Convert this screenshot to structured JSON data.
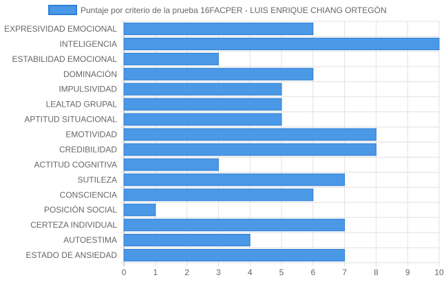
{
  "chart_data": {
    "type": "bar",
    "orientation": "horizontal",
    "legend": {
      "label": "Puntaje por criterio de la prueba 16FACPER - LUIS ENRIQUE CHIANG ORTEGÓN",
      "position": "top"
    },
    "categories": [
      "EXPRESIVIDAD EMOCIONAL",
      "INTELIGENCIA",
      "ESTABILIDAD EMOCIONAL",
      "DOMINACIÓN",
      "IMPULSIVIDAD",
      "LEALTAD GRUPAL",
      "APTITUD SITUACIONAL",
      "EMOTIVIDAD",
      "CREDIBILIDAD",
      "ACTITUD COGNITIVA",
      "SUTILEZA",
      "CONSCIENCIA",
      "POSICIÓN SOCIAL",
      "CERTEZA INDIVIDUAL",
      "AUTOESTIMA",
      "ESTADO DE ANSIEDAD"
    ],
    "series": [
      {
        "name": "Puntaje por criterio de la prueba 16FACPER - LUIS ENRIQUE CHIANG ORTEGÓN",
        "values": [
          6,
          10,
          3,
          6,
          5,
          5,
          5,
          8,
          8,
          3,
          7,
          6,
          1,
          7,
          4,
          7
        ]
      }
    ],
    "xlim": [
      0,
      10
    ],
    "x_ticks": [
      0,
      1,
      2,
      3,
      4,
      5,
      6,
      7,
      8,
      9,
      10
    ],
    "grid": true,
    "colors": {
      "bar_fill": "#4a98e6",
      "bar_stroke": "#2f7fd4",
      "grid": "#e0e0e0",
      "axis": "#a0a0a0",
      "text": "#666666"
    }
  }
}
